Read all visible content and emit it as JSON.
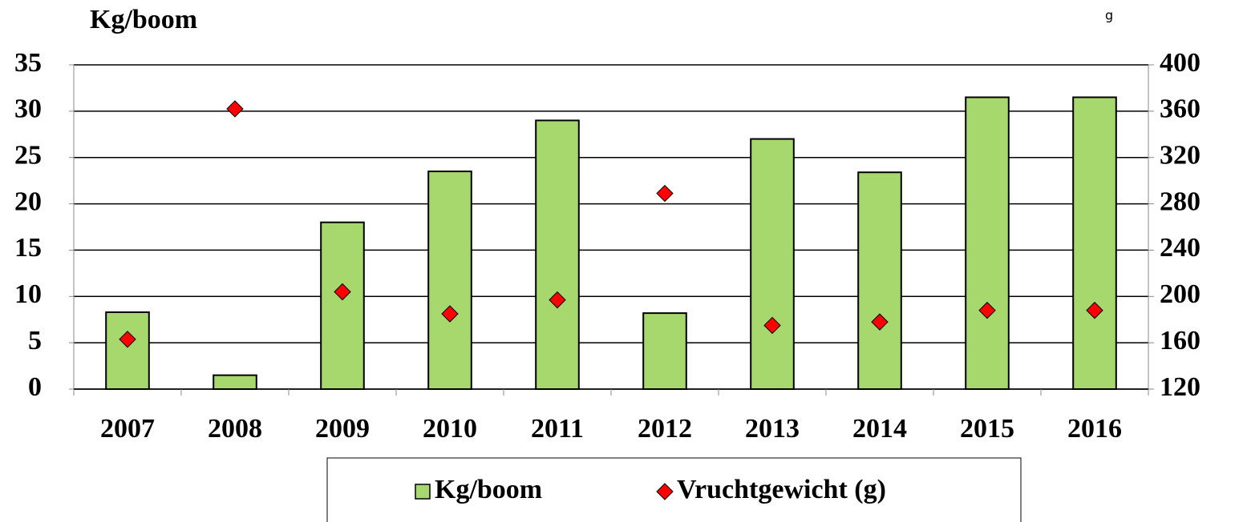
{
  "chart_data": {
    "type": "bar",
    "y_label": "Kg/boom",
    "y2_label": "g",
    "categories": [
      "2007",
      "2008",
      "2009",
      "2010",
      "2011",
      "2012",
      "2013",
      "2014",
      "2015",
      "2016"
    ],
    "series": [
      {
        "name": "Kg/boom",
        "type": "bar",
        "color": "#a6d86e",
        "values": [
          8.3,
          1.5,
          18.0,
          23.5,
          29.0,
          8.2,
          27.0,
          23.4,
          31.5,
          31.5
        ]
      },
      {
        "name": "Vruchtgewicht (g)",
        "type": "scatter",
        "axis": "y2",
        "color": "#ff0000",
        "values": [
          163,
          362,
          204,
          185,
          197,
          289,
          175,
          178,
          188,
          188
        ]
      }
    ],
    "ylim": [
      0,
      35
    ],
    "yticks": [
      0,
      5,
      10,
      15,
      20,
      25,
      30,
      35
    ],
    "y2lim": [
      120,
      400
    ],
    "y2ticks": [
      120,
      160,
      200,
      240,
      280,
      320,
      360,
      400
    ],
    "grid": true,
    "legend": "bottom"
  }
}
